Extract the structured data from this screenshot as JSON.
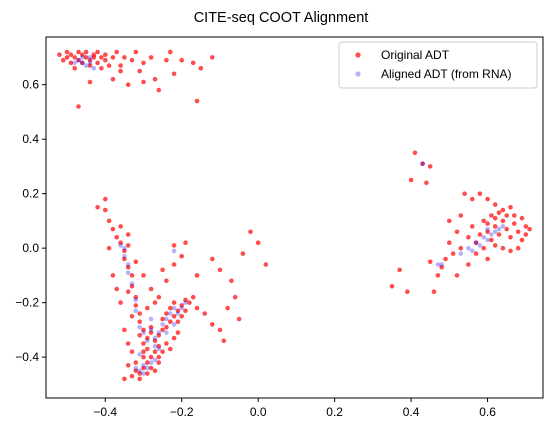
{
  "chart_data": {
    "type": "scatter",
    "title": "CITE-seq COOT Alignment",
    "xlabel": "",
    "ylabel": "",
    "xlim": [
      -0.555,
      0.745
    ],
    "ylim": [
      -0.55,
      0.775
    ],
    "x_ticks": [
      -0.4,
      -0.2,
      0.0,
      0.2,
      0.4,
      0.6
    ],
    "y_ticks": [
      -0.4,
      -0.2,
      0.0,
      0.2,
      0.4,
      0.6
    ],
    "x_tick_labels": [
      "−0.4",
      "−0.2",
      "0.0",
      "0.2",
      "0.4",
      "0.6"
    ],
    "y_tick_labels": [
      "−0.4",
      "−0.2",
      "0.0",
      "0.2",
      "0.4",
      "0.6"
    ],
    "grid": false,
    "legend_position": "top-right",
    "series": [
      {
        "name": "Original ADT",
        "color": "#ff0000",
        "opacity": 0.7,
        "marker": "circle",
        "points": [
          [
            -0.52,
            0.71
          ],
          [
            -0.51,
            0.69
          ],
          [
            -0.5,
            0.72
          ],
          [
            -0.5,
            0.7
          ],
          [
            -0.49,
            0.68
          ],
          [
            -0.49,
            0.71
          ],
          [
            -0.48,
            0.7
          ],
          [
            -0.48,
            0.66
          ],
          [
            -0.47,
            0.72
          ],
          [
            -0.47,
            0.69
          ],
          [
            -0.46,
            0.71
          ],
          [
            -0.46,
            0.68
          ],
          [
            -0.45,
            0.7
          ],
          [
            -0.45,
            0.72
          ],
          [
            -0.44,
            0.69
          ],
          [
            -0.44,
            0.67
          ],
          [
            -0.43,
            0.71
          ],
          [
            -0.43,
            0.7
          ],
          [
            -0.42,
            0.68
          ],
          [
            -0.42,
            0.72
          ],
          [
            -0.41,
            0.7
          ],
          [
            -0.41,
            0.66
          ],
          [
            -0.4,
            0.69
          ],
          [
            -0.4,
            0.71
          ],
          [
            -0.39,
            0.67
          ],
          [
            -0.38,
            0.7
          ],
          [
            -0.37,
            0.72
          ],
          [
            -0.36,
            0.65
          ],
          [
            -0.35,
            0.7
          ],
          [
            -0.33,
            0.69
          ],
          [
            -0.32,
            0.72
          ],
          [
            -0.3,
            0.68
          ],
          [
            -0.28,
            0.7
          ],
          [
            -0.27,
            0.62
          ],
          [
            -0.24,
            0.69
          ],
          [
            -0.23,
            0.72
          ],
          [
            -0.22,
            0.64
          ],
          [
            -0.2,
            0.69
          ],
          [
            -0.17,
            0.68
          ],
          [
            -0.16,
            0.54
          ],
          [
            -0.15,
            0.66
          ],
          [
            -0.12,
            0.7
          ],
          [
            -0.47,
            0.52
          ],
          [
            -0.34,
            0.6
          ],
          [
            -0.3,
            0.61
          ],
          [
            -0.26,
            0.58
          ],
          [
            -0.38,
            0.62
          ],
          [
            -0.44,
            0.61
          ],
          [
            -0.36,
            0.67
          ],
          [
            -0.31,
            0.65
          ],
          [
            -0.42,
            0.15
          ],
          [
            -0.4,
            0.14
          ],
          [
            -0.39,
            0.1
          ],
          [
            -0.38,
            0.07
          ],
          [
            -0.4,
            0.18
          ],
          [
            -0.37,
            0.04
          ],
          [
            -0.36,
            0.02
          ],
          [
            -0.35,
            -0.01
          ],
          [
            -0.34,
            0.01
          ],
          [
            -0.35,
            -0.04
          ],
          [
            -0.34,
            -0.07
          ],
          [
            -0.33,
            -0.1
          ],
          [
            -0.33,
            -0.14
          ],
          [
            -0.32,
            -0.18
          ],
          [
            -0.32,
            -0.21
          ],
          [
            -0.33,
            -0.25
          ],
          [
            -0.31,
            -0.27
          ],
          [
            -0.3,
            -0.3
          ],
          [
            -0.31,
            -0.32
          ],
          [
            -0.3,
            -0.35
          ],
          [
            -0.29,
            -0.33
          ],
          [
            -0.29,
            -0.37
          ],
          [
            -0.28,
            -0.31
          ],
          [
            -0.28,
            -0.29
          ],
          [
            -0.27,
            -0.34
          ],
          [
            -0.27,
            -0.38
          ],
          [
            -0.26,
            -0.32
          ],
          [
            -0.26,
            -0.36
          ],
          [
            -0.25,
            -0.3
          ],
          [
            -0.25,
            -0.26
          ],
          [
            -0.24,
            -0.29
          ],
          [
            -0.24,
            -0.24
          ],
          [
            -0.23,
            -0.27
          ],
          [
            -0.23,
            -0.22
          ],
          [
            -0.22,
            -0.25
          ],
          [
            -0.22,
            -0.2
          ],
          [
            -0.21,
            -0.23
          ],
          [
            -0.21,
            -0.27
          ],
          [
            -0.2,
            -0.21
          ],
          [
            -0.2,
            -0.25
          ],
          [
            -0.19,
            -0.19
          ],
          [
            -0.19,
            -0.23
          ],
          [
            -0.18,
            -0.2
          ],
          [
            -0.17,
            -0.18
          ],
          [
            -0.16,
            -0.22
          ],
          [
            -0.3,
            -0.4
          ],
          [
            -0.29,
            -0.42
          ],
          [
            -0.3,
            -0.44
          ],
          [
            -0.31,
            -0.46
          ],
          [
            -0.32,
            -0.45
          ],
          [
            -0.33,
            -0.47
          ],
          [
            -0.31,
            -0.48
          ],
          [
            -0.29,
            -0.46
          ],
          [
            -0.28,
            -0.44
          ],
          [
            -0.27,
            -0.45
          ],
          [
            -0.26,
            -0.42
          ],
          [
            -0.32,
            -0.42
          ],
          [
            -0.34,
            -0.43
          ],
          [
            -0.35,
            -0.48
          ],
          [
            -0.28,
            -0.4
          ],
          [
            -0.25,
            -0.38
          ],
          [
            -0.24,
            -0.35
          ],
          [
            -0.22,
            -0.33
          ],
          [
            -0.21,
            -0.31
          ],
          [
            -0.23,
            -0.37
          ],
          [
            -0.26,
            -0.4
          ],
          [
            -0.3,
            -0.38
          ],
          [
            -0.33,
            -0.38
          ],
          [
            -0.34,
            -0.35
          ],
          [
            -0.35,
            -0.3
          ],
          [
            -0.36,
            -0.2
          ],
          [
            -0.37,
            -0.15
          ],
          [
            -0.38,
            -0.1
          ],
          [
            -0.39,
            0.0
          ],
          [
            -0.36,
            0.08
          ],
          [
            -0.34,
            0.05
          ],
          [
            -0.32,
            -0.05
          ],
          [
            -0.3,
            -0.1
          ],
          [
            -0.28,
            -0.15
          ],
          [
            -0.26,
            -0.18
          ],
          [
            -0.24,
            -0.12
          ],
          [
            -0.22,
            -0.06
          ],
          [
            -0.2,
            -0.03
          ],
          [
            -0.19,
            0.02
          ],
          [
            -0.22,
            0.01
          ],
          [
            -0.25,
            -0.08
          ],
          [
            -0.29,
            -0.22
          ],
          [
            -0.31,
            -0.24
          ],
          [
            -0.27,
            -0.2
          ],
          [
            -0.34,
            -0.16
          ],
          [
            -0.1,
            -0.3
          ],
          [
            -0.09,
            -0.34
          ],
          [
            -0.12,
            -0.28
          ],
          [
            -0.08,
            -0.22
          ],
          [
            -0.07,
            -0.12
          ],
          [
            -0.04,
            -0.02
          ],
          [
            0.02,
            -0.06
          ],
          [
            -0.02,
            0.06
          ],
          [
            -0.12,
            -0.04
          ],
          [
            -0.16,
            -0.1
          ],
          [
            -0.05,
            -0.26
          ],
          [
            -0.06,
            -0.18
          ],
          [
            -0.14,
            -0.24
          ],
          [
            -0.1,
            -0.08
          ],
          [
            0.0,
            0.02
          ],
          [
            0.41,
            0.35
          ],
          [
            0.43,
            0.31
          ],
          [
            0.45,
            0.3
          ],
          [
            0.4,
            0.25
          ],
          [
            0.44,
            0.24
          ],
          [
            0.35,
            -0.14
          ],
          [
            0.37,
            -0.08
          ],
          [
            0.39,
            -0.16
          ],
          [
            0.45,
            -0.05
          ],
          [
            0.47,
            -0.1
          ],
          [
            0.46,
            -0.16
          ],
          [
            0.48,
            -0.07
          ],
          [
            0.5,
            0.02
          ],
          [
            0.52,
            0.06
          ],
          [
            0.5,
            0.1
          ],
          [
            0.53,
            0.12
          ],
          [
            0.54,
            0.2
          ],
          [
            0.56,
            0.18
          ],
          [
            0.58,
            0.2
          ],
          [
            0.6,
            0.18
          ],
          [
            0.62,
            0.16
          ],
          [
            0.56,
            0.08
          ],
          [
            0.57,
            0.02
          ],
          [
            0.58,
            0.05
          ],
          [
            0.59,
            0.1
          ],
          [
            0.6,
            0.06
          ],
          [
            0.61,
            0.03
          ],
          [
            0.62,
            0.08
          ],
          [
            0.63,
            0.05
          ],
          [
            0.64,
            0.1
          ],
          [
            0.65,
            0.07
          ],
          [
            0.66,
            0.04
          ],
          [
            0.67,
            0.09
          ],
          [
            0.68,
            0.06
          ],
          [
            0.69,
            0.03
          ],
          [
            0.7,
            0.08
          ],
          [
            0.61,
            0.12
          ],
          [
            0.63,
            0.13
          ],
          [
            0.65,
            0.12
          ],
          [
            0.67,
            0.12
          ],
          [
            0.62,
            0.01
          ],
          [
            0.64,
            0.0
          ],
          [
            0.66,
            -0.01
          ],
          [
            0.68,
            0.0
          ],
          [
            0.59,
            0.0
          ],
          [
            0.57,
            -0.02
          ],
          [
            0.55,
            0.04
          ],
          [
            0.53,
            0.0
          ],
          [
            0.51,
            -0.02
          ],
          [
            0.49,
            -0.04
          ],
          [
            0.55,
            -0.06
          ],
          [
            0.52,
            -0.1
          ],
          [
            0.6,
            -0.04
          ],
          [
            0.64,
            0.14
          ],
          [
            0.66,
            0.15
          ],
          [
            0.69,
            0.11
          ],
          [
            0.7,
            0.05
          ],
          [
            0.71,
            0.07
          ],
          [
            0.6,
            0.09
          ],
          [
            0.62,
            0.11
          ]
        ]
      },
      {
        "name": "Aligned ADT (from RNA)",
        "color": "#0000ff",
        "opacity": 0.3,
        "marker": "circle",
        "points": [
          [
            -0.48,
            0.68
          ],
          [
            -0.47,
            0.69
          ],
          [
            -0.46,
            0.68
          ],
          [
            -0.45,
            0.67
          ],
          [
            -0.44,
            0.68
          ],
          [
            -0.43,
            0.66
          ],
          [
            -0.46,
            0.7
          ],
          [
            -0.44,
            0.7
          ],
          [
            -0.36,
            0.01
          ],
          [
            -0.35,
            0.0
          ],
          [
            -0.35,
            -0.03
          ],
          [
            -0.34,
            -0.06
          ],
          [
            -0.34,
            -0.09
          ],
          [
            -0.33,
            -0.13
          ],
          [
            -0.32,
            -0.19
          ],
          [
            -0.32,
            -0.23
          ],
          [
            -0.31,
            -0.29
          ],
          [
            -0.3,
            -0.31
          ],
          [
            -0.29,
            -0.34
          ],
          [
            -0.28,
            -0.3
          ],
          [
            -0.27,
            -0.33
          ],
          [
            -0.27,
            -0.36
          ],
          [
            -0.26,
            -0.31
          ],
          [
            -0.25,
            -0.28
          ],
          [
            -0.24,
            -0.26
          ],
          [
            -0.23,
            -0.24
          ],
          [
            -0.22,
            -0.22
          ],
          [
            -0.21,
            -0.24
          ],
          [
            -0.2,
            -0.22
          ],
          [
            -0.19,
            -0.2
          ],
          [
            -0.22,
            -0.28
          ],
          [
            -0.24,
            -0.31
          ],
          [
            -0.3,
            -0.43
          ],
          [
            -0.31,
            -0.45
          ],
          [
            -0.29,
            -0.44
          ],
          [
            -0.32,
            -0.44
          ],
          [
            -0.3,
            -0.46
          ],
          [
            -0.28,
            -0.42
          ],
          [
            -0.27,
            -0.41
          ],
          [
            -0.31,
            -0.39
          ],
          [
            -0.22,
            -0.01
          ],
          [
            -0.28,
            -0.26
          ],
          [
            -0.26,
            -0.37
          ],
          [
            0.43,
            0.31
          ],
          [
            0.47,
            -0.06
          ],
          [
            0.48,
            -0.06
          ],
          [
            0.53,
            -0.02
          ],
          [
            0.55,
            0.0
          ],
          [
            0.57,
            0.02
          ],
          [
            0.59,
            0.04
          ],
          [
            0.61,
            0.05
          ],
          [
            0.6,
            0.03
          ],
          [
            0.62,
            0.06
          ],
          [
            0.63,
            0.07
          ],
          [
            0.64,
            0.08
          ],
          [
            0.58,
            0.01
          ],
          [
            0.56,
            -0.01
          ],
          [
            0.6,
            0.07
          ]
        ]
      }
    ]
  }
}
